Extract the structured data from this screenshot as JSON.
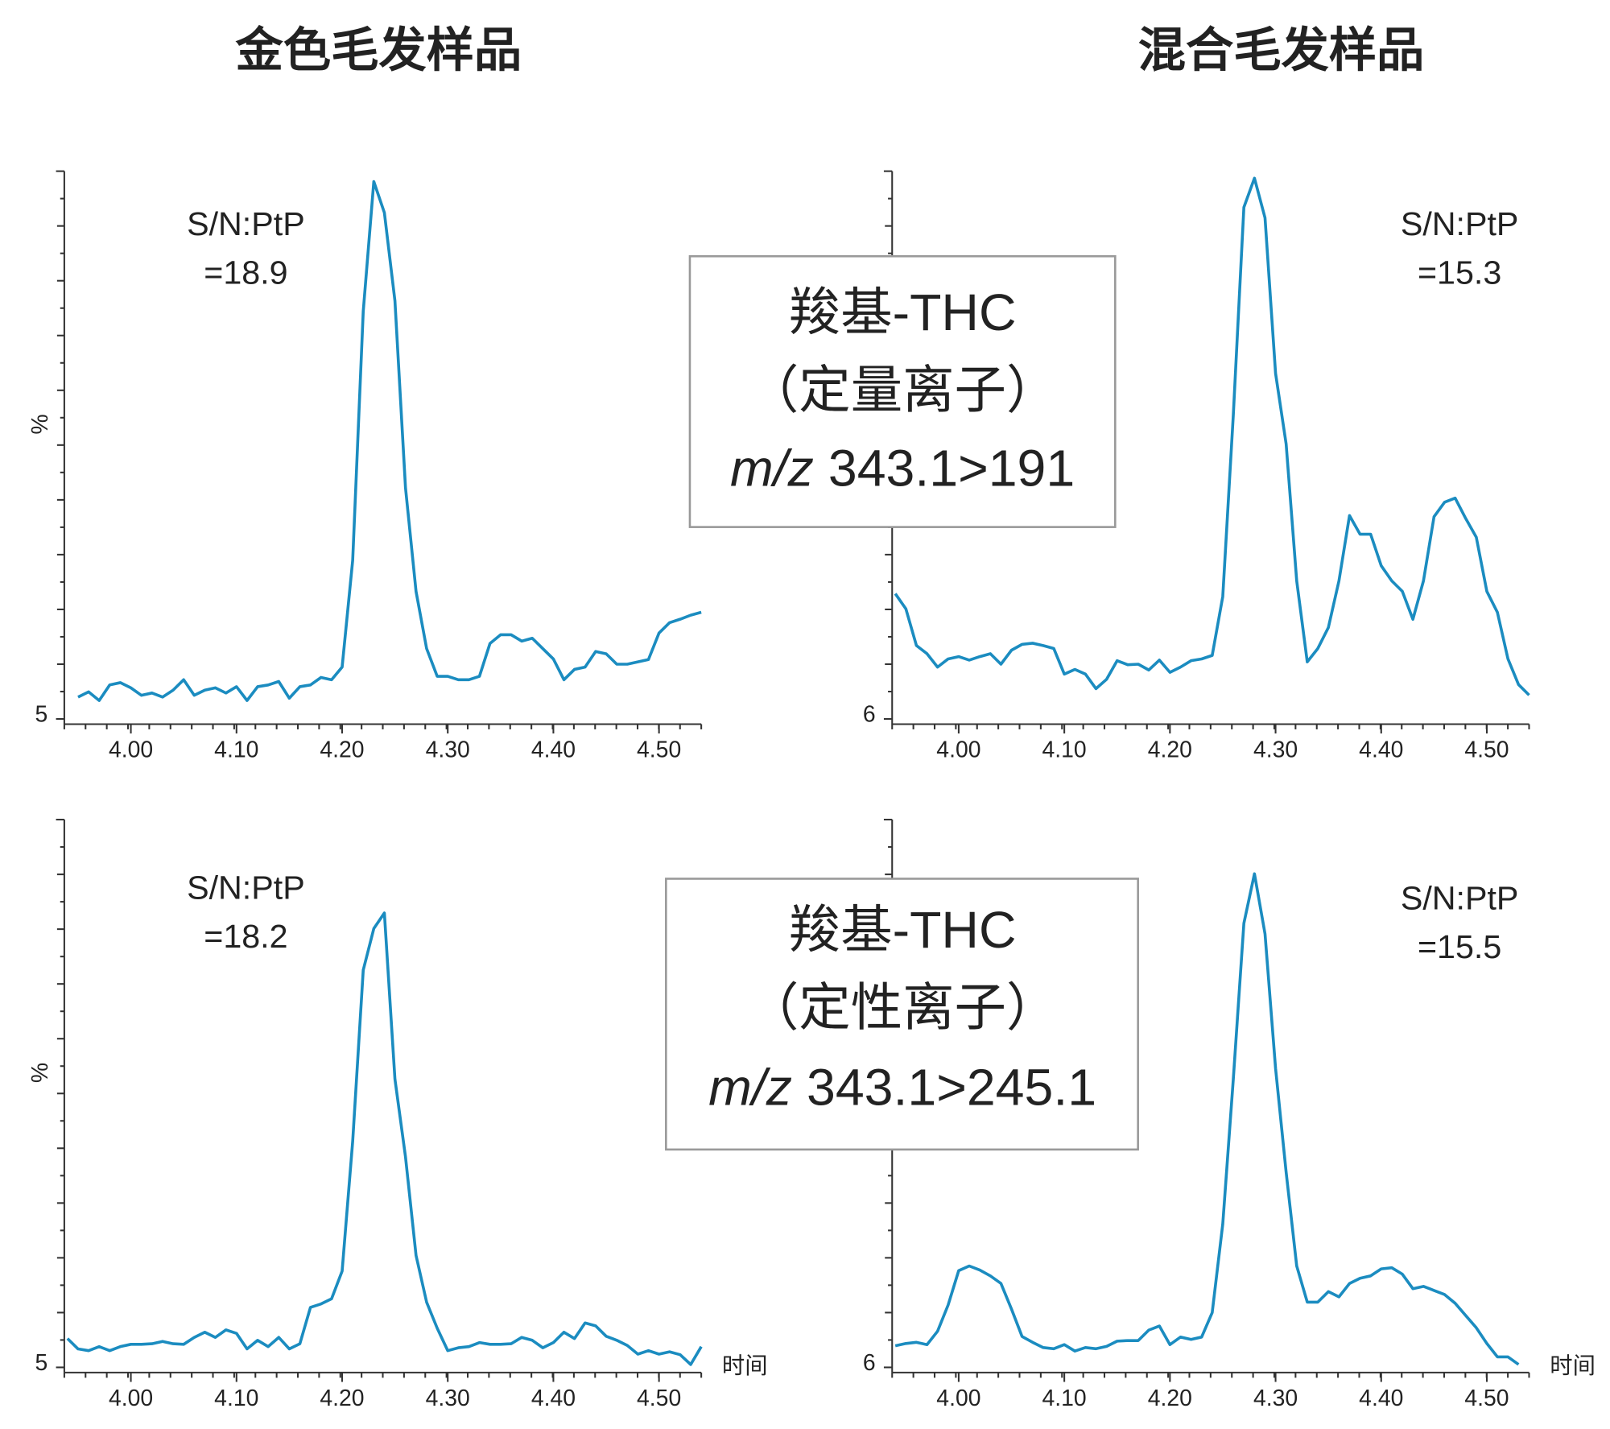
{
  "column_titles": [
    "金色毛发样品",
    "混合毛发样品"
  ],
  "row_boxes": [
    {
      "name": "羧基-THC",
      "ion": "（定量离子）",
      "mz_prefix": "m/z",
      "mz": "343.1>191"
    },
    {
      "name": "羧基-THC",
      "ion": "（定性离子）",
      "mz_prefix": "m/z",
      "mz": "343.1>245.1"
    }
  ],
  "chart_data": [
    {
      "type": "line",
      "color": "#1b8cc0",
      "x": [
        3.95,
        3.96,
        3.97,
        3.98,
        3.99,
        4.0,
        4.01,
        4.02,
        4.03,
        4.04,
        4.05,
        4.06,
        4.07,
        4.08,
        4.09,
        4.1,
        4.11,
        4.12,
        4.13,
        4.14,
        4.15,
        4.16,
        4.17,
        4.18,
        4.19,
        4.2,
        4.21,
        4.22,
        4.23,
        4.24,
        4.25,
        4.26,
        4.27,
        4.28,
        4.29,
        4.3,
        4.31,
        4.32,
        4.33,
        4.34,
        4.35,
        4.36,
        4.37,
        4.38,
        4.39,
        4.4,
        4.41,
        4.42,
        4.43,
        4.44,
        4.45,
        4.46,
        4.47,
        4.48,
        4.49,
        4.5,
        4.51,
        4.52,
        4.53,
        4.54
      ],
      "values": [
        8.8,
        9.7,
        8.2,
        10.9,
        11.3,
        10.4,
        9.1,
        9.5,
        8.8,
        10,
        11.8,
        9.1,
        10,
        10.4,
        9.5,
        10.6,
        8.2,
        10.6,
        10.9,
        11.5,
        8.6,
        10.6,
        10.9,
        12.2,
        11.8,
        14,
        32.5,
        75.7,
        98.2,
        92.8,
        77.5,
        45.1,
        27.1,
        17.2,
        12.4,
        12.4,
        11.8,
        11.8,
        12.4,
        18.1,
        19.6,
        19.6,
        18.5,
        19,
        17.2,
        15.4,
        11.8,
        13.6,
        14,
        16.7,
        16.3,
        14.5,
        14.5,
        14.9,
        15.3,
        19.9,
        21.7,
        22.3,
        23,
        23.5
      ],
      "xlim": [
        3.937,
        4.54
      ],
      "xticks": [
        {
          "value": 4.0,
          "label": "4.00"
        },
        {
          "value": 4.1,
          "label": "4.10"
        },
        {
          "value": 4.2,
          "label": "4.20"
        },
        {
          "value": 4.3,
          "label": "4.30"
        },
        {
          "value": 4.4,
          "label": "4.40"
        },
        {
          "value": 4.5,
          "label": "4.50"
        }
      ],
      "ylim": [
        5,
        100
      ],
      "yticks": [
        5
      ],
      "y_label": "%",
      "annotation": [
        "S/N:PtP",
        "=18.9"
      ]
    },
    {
      "type": "line",
      "color": "#1b8cc0",
      "x": [
        3.94,
        3.95,
        3.96,
        3.97,
        3.98,
        3.99,
        4.0,
        4.01,
        4.02,
        4.03,
        4.04,
        4.05,
        4.06,
        4.07,
        4.08,
        4.09,
        4.1,
        4.11,
        4.12,
        4.13,
        4.14,
        4.15,
        4.16,
        4.17,
        4.18,
        4.19,
        4.2,
        4.21,
        4.22,
        4.23,
        4.24,
        4.25,
        4.26,
        4.27,
        4.28,
        4.29,
        4.3,
        4.31,
        4.32,
        4.33,
        4.34,
        4.35,
        4.36,
        4.37,
        4.38,
        4.39,
        4.4,
        4.41,
        4.42,
        4.43,
        4.44,
        4.45,
        4.46,
        4.47,
        4.48,
        4.49,
        4.5,
        4.51,
        4.52,
        4.53,
        4.54
      ],
      "values": [
        27.5,
        24.9,
        18.6,
        17.2,
        14.9,
        16.3,
        16.7,
        16.1,
        16.7,
        17.2,
        15.4,
        17.8,
        18.8,
        19,
        18.6,
        18.1,
        13.7,
        14.5,
        13.7,
        11.2,
        12.8,
        16,
        15.3,
        15.4,
        14.4,
        16.1,
        14,
        14.9,
        16,
        16.3,
        16.9,
        27,
        58.2,
        93.8,
        98.8,
        92,
        65.3,
        53.2,
        29.7,
        15.8,
        18.1,
        21.7,
        29.7,
        40.9,
        37.7,
        37.7,
        32.3,
        29.7,
        27.9,
        23.1,
        29.7,
        40.7,
        43.2,
        43.9,
        40.4,
        37.2,
        27.9,
        24.3,
        16.3,
        11.9,
        10.1
      ],
      "xlim": [
        3.937,
        4.54
      ],
      "xticks": [
        {
          "value": 4.0,
          "label": "4.00"
        },
        {
          "value": 4.1,
          "label": "4.10"
        },
        {
          "value": 4.2,
          "label": "4.20"
        },
        {
          "value": 4.3,
          "label": "4.30"
        },
        {
          "value": 4.4,
          "label": "4.40"
        },
        {
          "value": 4.5,
          "label": "4.50"
        }
      ],
      "ylim": [
        6,
        100
      ],
      "yticks": [
        6
      ],
      "annotation": [
        "S/N:PtP",
        "=15.3"
      ]
    },
    {
      "type": "line",
      "color": "#1b8cc0",
      "x": [
        3.94,
        3.95,
        3.96,
        3.97,
        3.98,
        3.99,
        4.0,
        4.01,
        4.02,
        4.03,
        4.04,
        4.05,
        4.06,
        4.07,
        4.08,
        4.09,
        4.1,
        4.11,
        4.12,
        4.13,
        4.14,
        4.15,
        4.16,
        4.17,
        4.18,
        4.19,
        4.2,
        4.21,
        4.22,
        4.23,
        4.24,
        4.25,
        4.26,
        4.27,
        4.28,
        4.29,
        4.3,
        4.31,
        4.32,
        4.33,
        4.34,
        4.35,
        4.36,
        4.37,
        4.38,
        4.39,
        4.4,
        4.41,
        4.42,
        4.43,
        4.44,
        4.45,
        4.46,
        4.47,
        4.48,
        4.49,
        4.5,
        4.51,
        4.52,
        4.53,
        4.54
      ],
      "values": [
        10,
        8.2,
        7.9,
        8.6,
        7.9,
        8.6,
        9,
        9,
        9.1,
        9.5,
        9.1,
        9,
        10.2,
        11.1,
        10.2,
        11.5,
        10.9,
        8.2,
        9.7,
        8.6,
        10.2,
        8.2,
        9.1,
        15.4,
        16,
        16.9,
        21.7,
        44.2,
        73.9,
        81.1,
        83.8,
        55,
        41.5,
        24.4,
        16.3,
        11.8,
        7.9,
        8.4,
        8.6,
        9.3,
        9,
        9,
        9.1,
        10.2,
        9.7,
        8.4,
        9.3,
        11.1,
        10,
        12.7,
        12.2,
        10.4,
        9.7,
        8.8,
        7.3,
        7.9,
        7.3,
        7.7,
        7.2,
        5.5,
        8.6
      ],
      "xlim": [
        3.937,
        4.54
      ],
      "xticks": [
        {
          "value": 4.0,
          "label": "4.00"
        },
        {
          "value": 4.1,
          "label": "4.10"
        },
        {
          "value": 4.2,
          "label": "4.20"
        },
        {
          "value": 4.3,
          "label": "4.30"
        },
        {
          "value": 4.4,
          "label": "4.40"
        },
        {
          "value": 4.5,
          "label": "4.50"
        }
      ],
      "ylim": [
        5,
        100
      ],
      "yticks": [
        5
      ],
      "y_label": "%",
      "x_label": "时间",
      "annotation": [
        "S/N:PtP",
        "=18.2"
      ]
    },
    {
      "type": "line",
      "color": "#1b8cc0",
      "x": [
        3.94,
        3.95,
        3.96,
        3.97,
        3.98,
        3.99,
        4.0,
        4.01,
        4.02,
        4.03,
        4.04,
        4.05,
        4.06,
        4.07,
        4.08,
        4.09,
        4.1,
        4.11,
        4.12,
        4.13,
        4.14,
        4.15,
        4.16,
        4.17,
        4.18,
        4.19,
        4.2,
        4.21,
        4.22,
        4.23,
        4.24,
        4.25,
        4.26,
        4.27,
        4.28,
        4.29,
        4.3,
        4.31,
        4.32,
        4.33,
        4.34,
        4.35,
        4.36,
        4.37,
        4.38,
        4.39,
        4.4,
        4.41,
        4.42,
        4.43,
        4.44,
        4.45,
        4.46,
        4.47,
        4.48,
        4.49,
        4.5,
        4.51,
        4.52,
        4.53
      ],
      "values": [
        9.7,
        10.1,
        10.3,
        9.9,
        12.2,
        16.7,
        22.6,
        23.4,
        22.7,
        21.7,
        20.4,
        16,
        11.3,
        10.3,
        9.4,
        9.2,
        9.9,
        8.8,
        9.4,
        9.2,
        9.6,
        10.5,
        10.6,
        10.6,
        12.4,
        13.1,
        9.9,
        11.2,
        10.8,
        11.2,
        15.4,
        30.6,
        55.5,
        82.2,
        90.7,
        80.4,
        57.3,
        39.5,
        23.4,
        17.2,
        17.2,
        19,
        18.1,
        20.4,
        21.3,
        21.7,
        22.9,
        23.1,
        22,
        19.5,
        19.9,
        19.2,
        18.5,
        17,
        14.9,
        12.8,
        10.1,
        7.8,
        7.8,
        6.5
      ],
      "xlim": [
        3.937,
        4.54
      ],
      "xticks": [
        {
          "value": 4.0,
          "label": "4.00"
        },
        {
          "value": 4.1,
          "label": "4.10"
        },
        {
          "value": 4.2,
          "label": "4.20"
        },
        {
          "value": 4.3,
          "label": "4.30"
        },
        {
          "value": 4.4,
          "label": "4.40"
        },
        {
          "value": 4.5,
          "label": "4.50"
        }
      ],
      "ylim": [
        6,
        100
      ],
      "yticks": [
        6
      ],
      "x_label": "时间",
      "annotation": [
        "S/N:PtP",
        "=15.5"
      ]
    }
  ]
}
